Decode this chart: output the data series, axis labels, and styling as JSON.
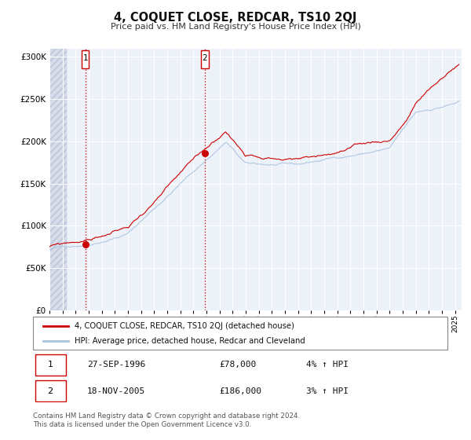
{
  "title": "4, COQUET CLOSE, REDCAR, TS10 2QJ",
  "subtitle": "Price paid vs. HM Land Registry's House Price Index (HPI)",
  "xlim": [
    1994.0,
    2025.5
  ],
  "ylim": [
    0,
    310000
  ],
  "yticks": [
    0,
    50000,
    100000,
    150000,
    200000,
    250000,
    300000
  ],
  "sale1_x": 1996.75,
  "sale1_y": 78000,
  "sale1_label": "1",
  "sale1_date": "27-SEP-1996",
  "sale1_price": "£78,000",
  "sale1_hpi": "4% ↑ HPI",
  "sale2_x": 2005.88,
  "sale2_y": 186000,
  "sale2_label": "2",
  "sale2_date": "18-NOV-2005",
  "sale2_price": "£186,000",
  "sale2_hpi": "3% ↑ HPI",
  "hpi_color": "#a8c4e0",
  "price_color": "#cc0000",
  "legend_label_price": "4, COQUET CLOSE, REDCAR, TS10 2QJ (detached house)",
  "legend_label_hpi": "HPI: Average price, detached house, Redcar and Cleveland",
  "footnote": "Contains HM Land Registry data © Crown copyright and database right 2024.\nThis data is licensed under the Open Government Licence v3.0.",
  "plot_bg_color": "#edf1f8",
  "hatch_color": "#d8dce8",
  "hatch_region_end": 1995.3
}
